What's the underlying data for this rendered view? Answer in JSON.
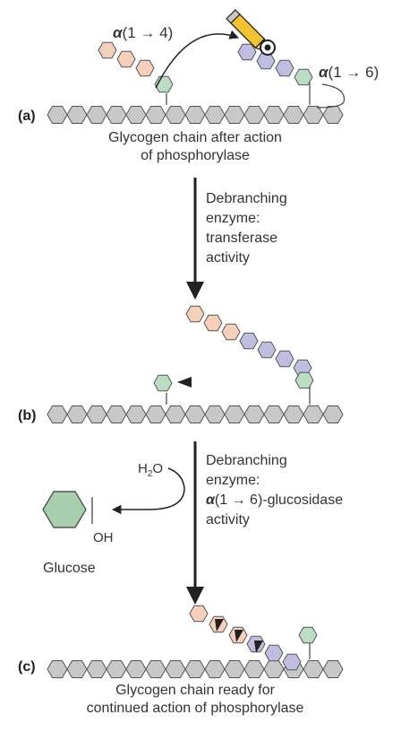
{
  "panel_a": {
    "label": "(a)",
    "bond_left_alpha": "α",
    "bond_left_rest": "(1 → 4)",
    "bond_right_alpha": "α",
    "bond_right_rest": "(1 → 6)",
    "caption_line1": "Glycogen chain after action",
    "caption_line2": "of phosphorylase"
  },
  "step_1": {
    "line1": "Debranching",
    "line2": "enzyme:",
    "line3": "transferase",
    "line4": "activity"
  },
  "panel_b": {
    "label": "(b)"
  },
  "step_2": {
    "line1": "Debranching",
    "line2": "enzyme:",
    "line3_alpha": "α",
    "line3_rest": "(1 → 6)-glucosidase",
    "line4": "activity",
    "water_h": "H",
    "water_sub": "2",
    "water_o": "O",
    "hydroxyl": "OH",
    "product": "Glucose"
  },
  "panel_c": {
    "label": "(c)",
    "caption_line1": "Glycogen chain ready for",
    "caption_line2": "continued action of phosphorylase"
  },
  "colors": {
    "backbone": "#c8c8c8",
    "peach": "#f5d0bb",
    "purple": "#c0bee0",
    "green": "#bcdcc3",
    "glucose": "#a8d0ae",
    "outline": "#555555"
  }
}
